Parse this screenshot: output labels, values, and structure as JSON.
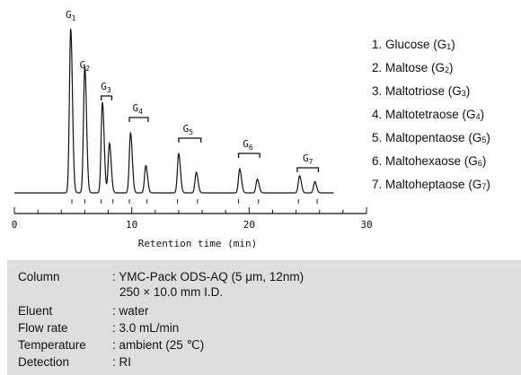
{
  "chart_data": {
    "type": "line",
    "title": "",
    "xlabel": "Retention time (min)",
    "ylabel": "",
    "xlim": [
      0,
      30
    ],
    "xticks": [
      0,
      10,
      20,
      30
    ],
    "grid": false,
    "legend_position": "right",
    "peaks": [
      {
        "x": 4.8,
        "height": 0.96
      },
      {
        "x": 6.0,
        "height": 0.74
      },
      {
        "x": 7.5,
        "height": 0.53
      },
      {
        "x": 8.1,
        "height": 0.29
      },
      {
        "x": 9.9,
        "height": 0.35
      },
      {
        "x": 11.2,
        "height": 0.16
      },
      {
        "x": 14.0,
        "height": 0.23
      },
      {
        "x": 15.5,
        "height": 0.12
      },
      {
        "x": 19.2,
        "height": 0.14
      },
      {
        "x": 20.7,
        "height": 0.08
      },
      {
        "x": 24.3,
        "height": 0.1
      },
      {
        "x": 25.6,
        "height": 0.065
      }
    ],
    "peak_labels": [
      {
        "main": "G",
        "sub": "1",
        "x": 4.8
      },
      {
        "main": "G",
        "sub": "2",
        "x": 6.0
      },
      {
        "main": "G",
        "sub": "3",
        "x": 7.8,
        "bracket": [
          7.4,
          8.3
        ]
      },
      {
        "main": "G",
        "sub": "4",
        "x": 10.5,
        "bracket": [
          9.8,
          11.4
        ]
      },
      {
        "main": "G",
        "sub": "5",
        "x": 14.8,
        "bracket": [
          14.0,
          15.9
        ]
      },
      {
        "main": "G",
        "sub": "6",
        "x": 19.9,
        "bracket": [
          19.1,
          20.9
        ]
      },
      {
        "main": "G",
        "sub": "7",
        "x": 25.0,
        "bracket": [
          24.1,
          25.9
        ]
      }
    ],
    "baseline_marks": [
      4.9,
      6.0,
      7.4,
      8.4,
      9.8,
      11.3,
      13.9,
      15.6,
      19.1,
      20.8,
      24.2,
      25.8
    ]
  },
  "legend": [
    {
      "prefix": "1. Glucose (G",
      "sub": "1",
      "suffix": ")"
    },
    {
      "prefix": "2. Maltose (G",
      "sub": "2",
      "suffix": ")"
    },
    {
      "prefix": "3. Maltotriose (G",
      "sub": "3",
      "suffix": ")"
    },
    {
      "prefix": "4. Maltotetraose (G",
      "sub": "4",
      "suffix": ")"
    },
    {
      "prefix": "5. Maltopentaose (G",
      "sub": "5",
      "suffix": ")"
    },
    {
      "prefix": "6. Maltohexaose (G",
      "sub": "6",
      "suffix": ")"
    },
    {
      "prefix": "7. Maltoheptaose (G",
      "sub": "7",
      "suffix": ")"
    }
  ],
  "conditions": {
    "column_label": "Column",
    "column_value": ": YMC-Pack ODS-AQ (5 μm, 12nm)",
    "column_value_2": "250 × 10.0 mm I.D.",
    "eluent_label": "Eluent",
    "eluent_value": ": water",
    "flow_label": "Flow rate",
    "flow_value": ": 3.0 mL/min",
    "temp_label": "Temperature",
    "temp_value": ": ambient (25 ℃)",
    "detection_label": "Detection",
    "detection_value": ": RI"
  }
}
